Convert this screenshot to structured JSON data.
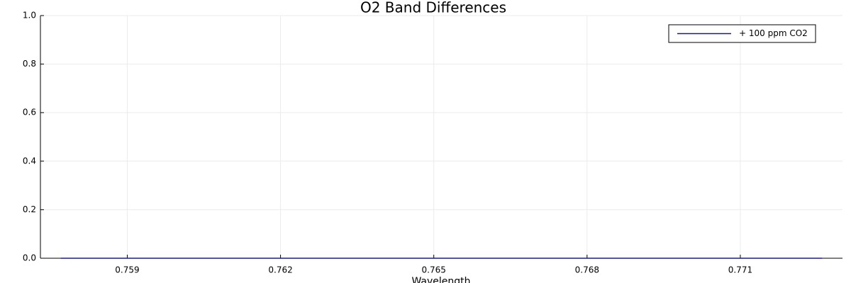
{
  "chart_data": {
    "type": "line",
    "title": "O2 Band Differences",
    "x_label": "Wavelength",
    "x": [
      0.7577,
      0.76,
      0.762,
      0.765,
      0.768,
      0.771,
      0.7726
    ],
    "series": [
      {
        "name": "+ 100 ppm CO2",
        "color": "#1a1a8c",
        "values": [
          0,
          0,
          0,
          0,
          0,
          0,
          0
        ]
      }
    ],
    "xlim": [
      0.7573,
      0.773
    ],
    "xticks": [
      0.759,
      0.762,
      0.765,
      0.768,
      0.771
    ],
    "ylim": [
      0,
      1
    ],
    "yticks": [
      {
        "value": 0,
        "label": "0.0"
      },
      0.2,
      0.4,
      0.6,
      0.8,
      {
        "value": 1,
        "label": "1.0"
      }
    ],
    "grid": true,
    "legend": "top-right"
  }
}
